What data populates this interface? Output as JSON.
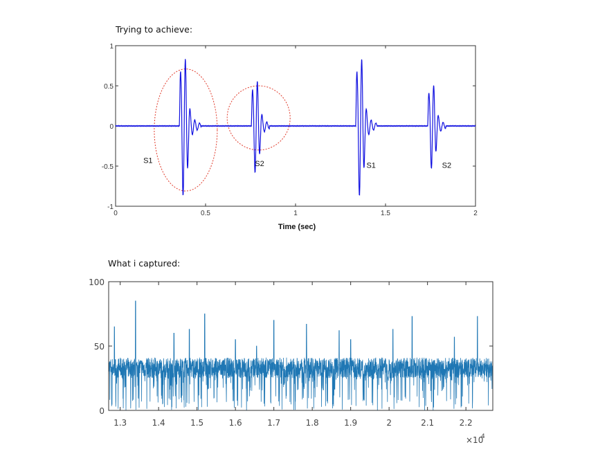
{
  "captions": {
    "top": "Trying to achieve:",
    "bottom": "What i captured:"
  },
  "chart_data": [
    {
      "type": "line",
      "title": "",
      "xlabel": "Time (sec)",
      "ylabel": "",
      "xlim": [
        0,
        2
      ],
      "ylim": [
        -1,
        1
      ],
      "x_ticks": [
        0,
        0.5,
        1,
        1.5,
        2
      ],
      "x_tick_labels": [
        "0",
        "0.5",
        "1",
        "1.5",
        "2"
      ],
      "y_ticks": [
        1,
        0.5,
        0,
        -0.5,
        -1
      ],
      "y_tick_labels": [
        "1",
        "0.5",
        "0",
        "-0.5",
        "-1"
      ],
      "grid": false,
      "line_color": "#1010e0",
      "bursts": [
        {
          "center": 0.38,
          "amplitude": 0.9,
          "width": 0.12
        },
        {
          "center": 0.78,
          "amplitude": 0.6,
          "width": 0.1
        },
        {
          "center": 1.36,
          "amplitude": 0.9,
          "width": 0.12
        },
        {
          "center": 1.76,
          "amplitude": 0.55,
          "width": 0.1
        }
      ],
      "annotations": [
        {
          "text": "S1",
          "x": 0.18,
          "y": -0.46
        },
        {
          "text": "S2",
          "x": 0.8,
          "y": -0.5
        },
        {
          "text": "S1",
          "x": 1.42,
          "y": -0.52
        },
        {
          "text": "S2",
          "x": 1.84,
          "y": -0.52
        }
      ],
      "highlight_ellipses": [
        {
          "cx": 0.39,
          "cy": -0.05,
          "rx": 0.175,
          "ry": 0.76,
          "color": "#e03a2a"
        },
        {
          "cx": 0.795,
          "cy": 0.1,
          "rx": 0.175,
          "ry": 0.4,
          "color": "#e03a2a"
        }
      ]
    },
    {
      "type": "line",
      "title": "",
      "xlabel": "",
      "ylabel": "",
      "xlim": [
        12700,
        22700
      ],
      "ylim": [
        0,
        100
      ],
      "x_ticks": [
        13000,
        14000,
        15000,
        16000,
        17000,
        18000,
        19000,
        20000,
        21000,
        22000
      ],
      "x_tick_labels": [
        "1.3",
        "1.4",
        "1.5",
        "1.6",
        "1.7",
        "1.8",
        "1.9",
        "2",
        "2.1",
        "2.2"
      ],
      "y_ticks": [
        0,
        50,
        100
      ],
      "y_tick_labels": [
        "0",
        "50",
        "100"
      ],
      "x_exponent_base": "×10",
      "x_exponent_power": "4",
      "grid": false,
      "line_color": "#1f77b4",
      "baseline": 33,
      "spikes": [
        {
          "x": 12850,
          "y": 65
        },
        {
          "x": 13400,
          "y": 85
        },
        {
          "x": 14400,
          "y": 60
        },
        {
          "x": 14800,
          "y": 63
        },
        {
          "x": 15200,
          "y": 75
        },
        {
          "x": 16000,
          "y": 55
        },
        {
          "x": 16550,
          "y": 50
        },
        {
          "x": 17000,
          "y": 70
        },
        {
          "x": 17850,
          "y": 67
        },
        {
          "x": 18700,
          "y": 62
        },
        {
          "x": 19000,
          "y": 55
        },
        {
          "x": 20100,
          "y": 63
        },
        {
          "x": 20600,
          "y": 73
        },
        {
          "x": 21700,
          "y": 57
        },
        {
          "x": 22300,
          "y": 73
        }
      ]
    }
  ]
}
